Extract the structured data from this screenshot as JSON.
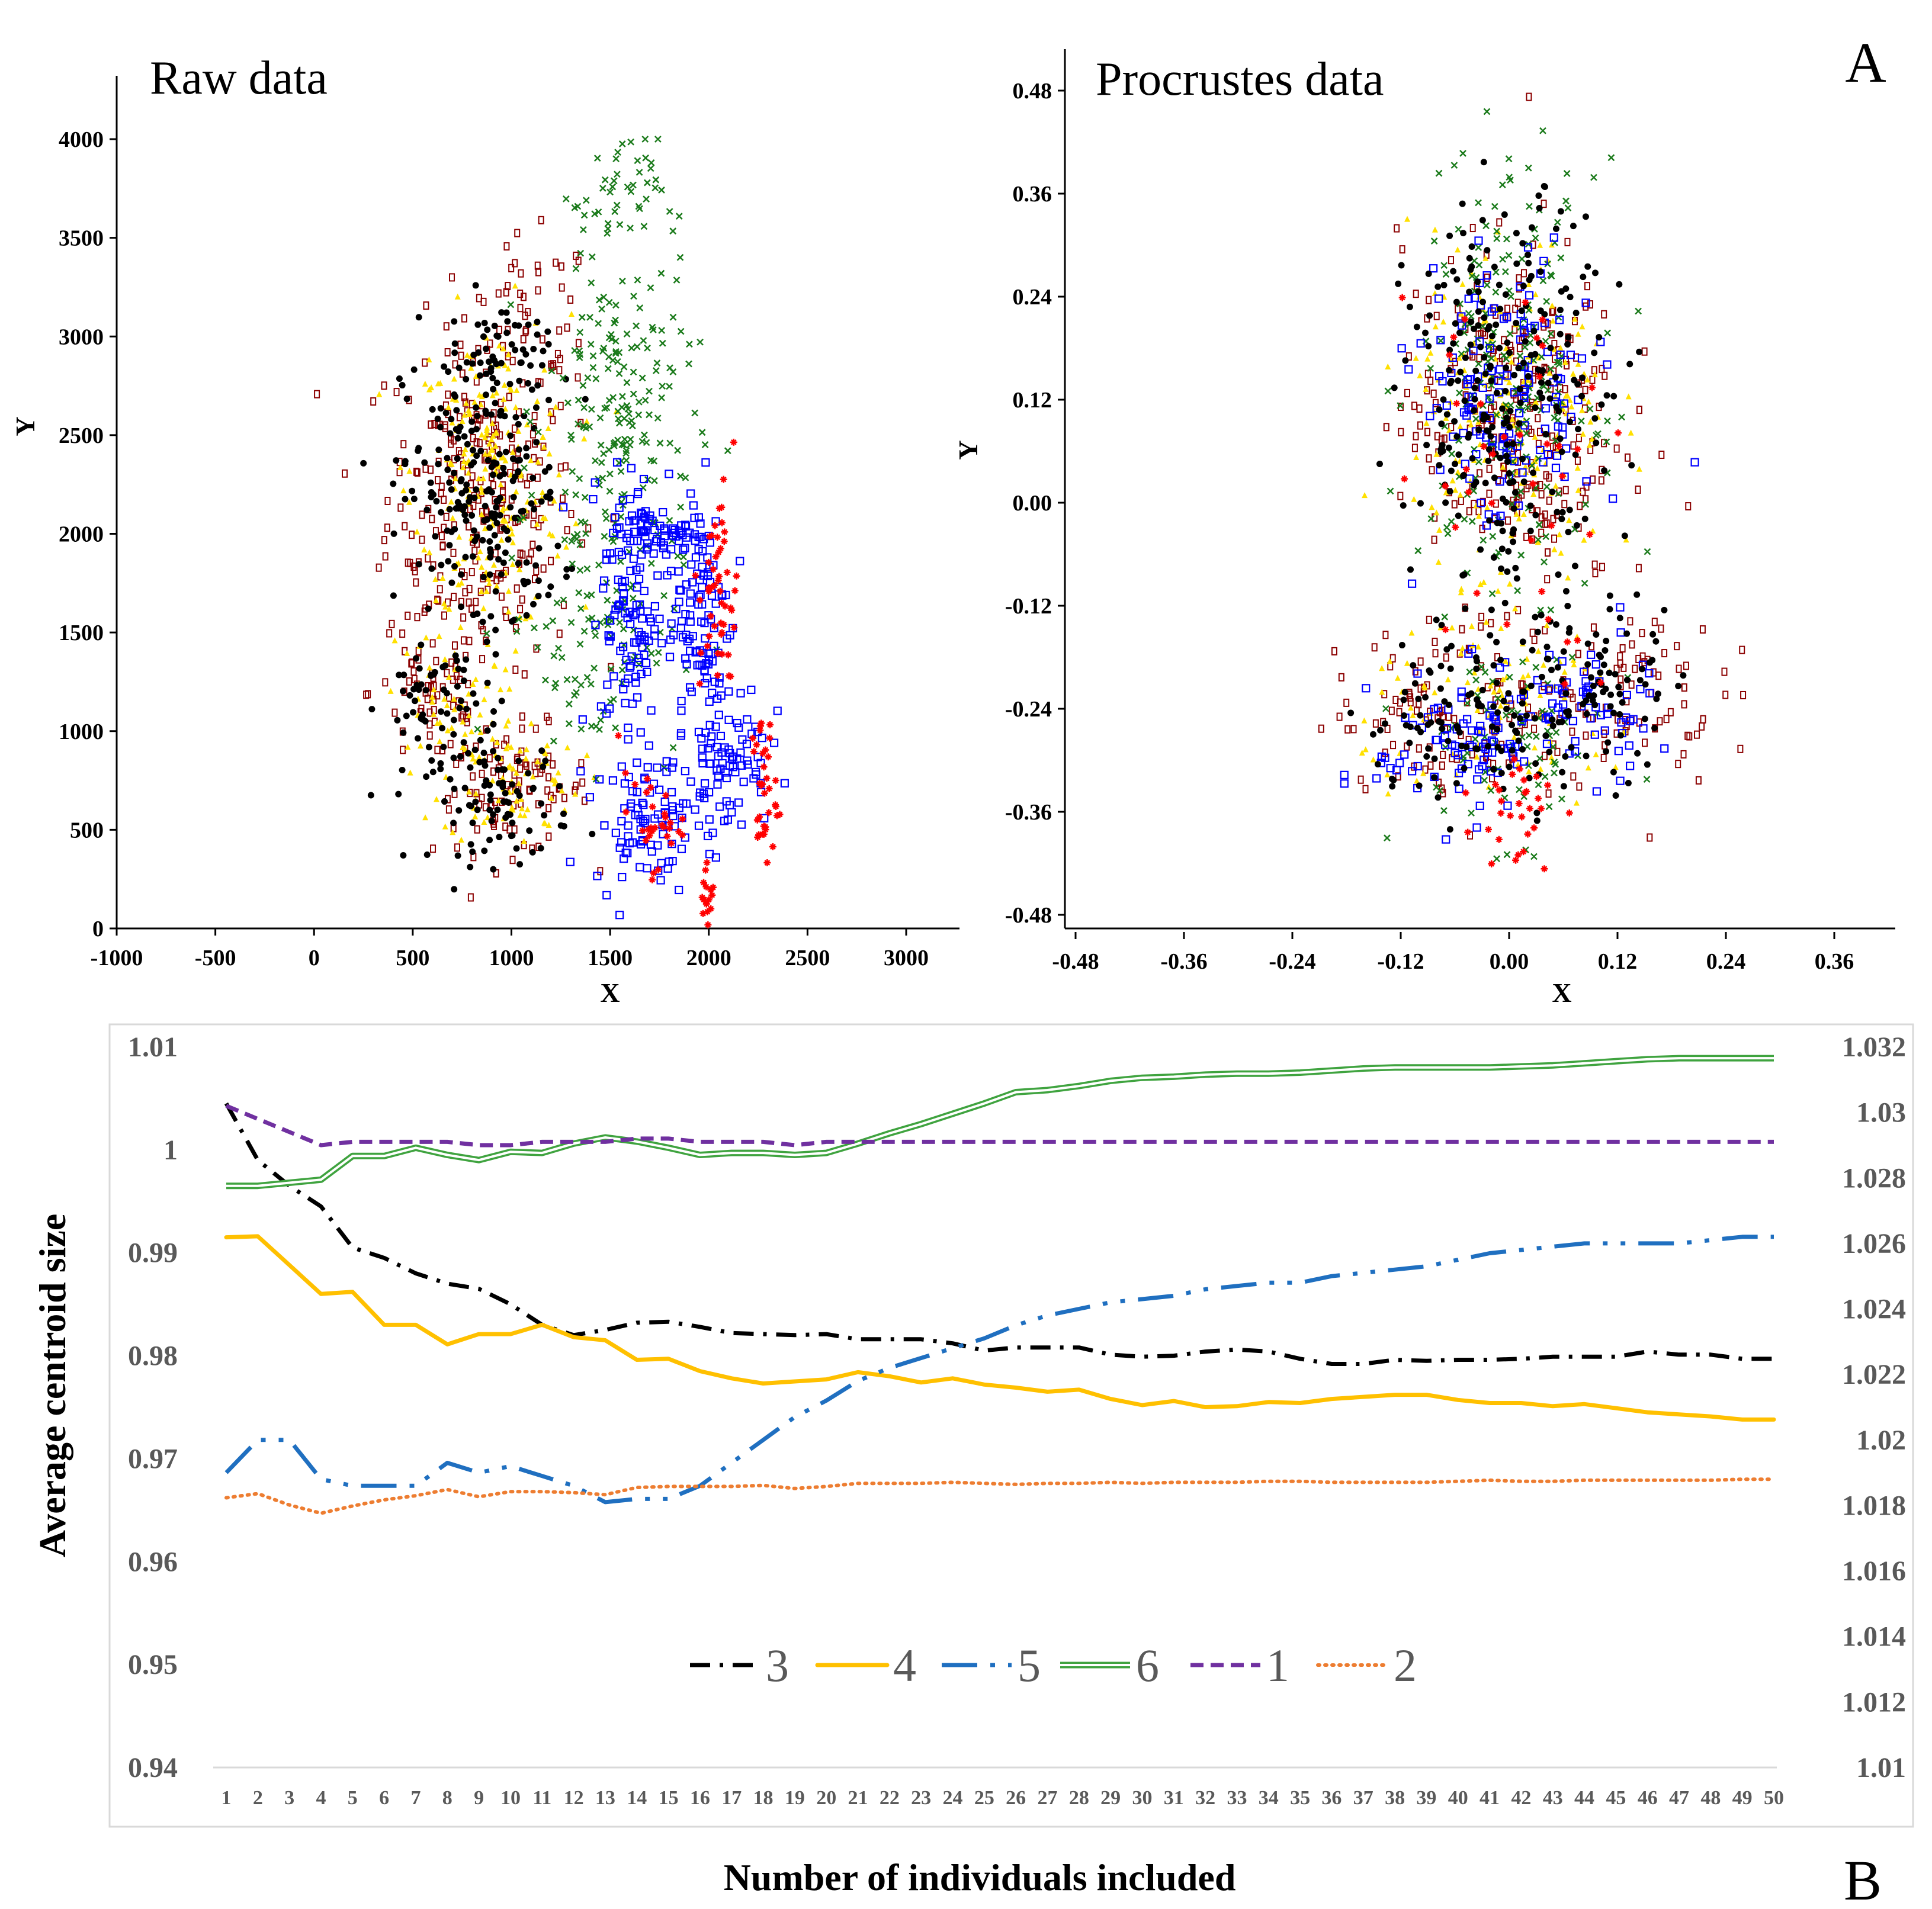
{
  "panel_labels": {
    "a": "A",
    "b": "B"
  },
  "colors": {
    "black": "#000000",
    "yellow": "#ffe000",
    "darkred": "#8b0000",
    "green": "#1a7a1a",
    "blue": "#0000ff",
    "red": "#ff0000",
    "s3": "#000000",
    "s4": "#ffc000",
    "s5": "#1f6fc0",
    "s6": "#3fa33f",
    "s1": "#7030a0",
    "s2": "#ed7d31",
    "gray_text": "#595959",
    "frame": "#d9d9d9"
  },
  "chart_data": [
    {
      "type": "scatter",
      "title": "Raw data",
      "xlabel": "X",
      "ylabel": "Y",
      "xlim": [
        -1000,
        3000
      ],
      "ylim": [
        0,
        4000
      ],
      "x_ticks": [
        "-1000",
        "-500",
        "0",
        "500",
        "1000",
        "1500",
        "2000",
        "2500",
        "3000"
      ],
      "y_ticks": [
        "0",
        "500",
        "1000",
        "1500",
        "2000",
        "2500",
        "3000",
        "3500",
        "4000"
      ],
      "point_series": [
        {
          "color": "darkred",
          "marker": "rect",
          "clusters": [
            {
              "cx": 850,
              "cy": 2200,
              "sx": 300,
              "sy": 550,
              "n": 260
            },
            {
              "cx": 1000,
              "cy": 700,
              "sx": 250,
              "sy": 200,
              "n": 90
            },
            {
              "cx": 600,
              "cy": 1200,
              "sx": 200,
              "sy": 250,
              "n": 60
            },
            {
              "cx": 1100,
              "cy": 3100,
              "sx": 200,
              "sy": 250,
              "n": 40
            }
          ]
        },
        {
          "color": "yellow",
          "marker": "tri",
          "clusters": [
            {
              "cx": 900,
              "cy": 2300,
              "sx": 250,
              "sy": 500,
              "n": 220
            },
            {
              "cx": 1000,
              "cy": 750,
              "sx": 220,
              "sy": 200,
              "n": 80
            },
            {
              "cx": 650,
              "cy": 1150,
              "sx": 180,
              "sy": 200,
              "n": 50
            }
          ]
        },
        {
          "color": "black",
          "marker": "dot",
          "clusters": [
            {
              "cx": 850,
              "cy": 2200,
              "sx": 250,
              "sy": 500,
              "n": 240
            },
            {
              "cx": 950,
              "cy": 650,
              "sx": 220,
              "sy": 200,
              "n": 90
            },
            {
              "cx": 580,
              "cy": 1150,
              "sx": 150,
              "sy": 200,
              "n": 50
            },
            {
              "cx": 950,
              "cy": 2900,
              "sx": 150,
              "sy": 200,
              "n": 40
            }
          ]
        },
        {
          "color": "green",
          "marker": "x",
          "clusters": [
            {
              "cx": 1550,
              "cy": 2600,
              "sx": 230,
              "sy": 550,
              "n": 200
            },
            {
              "cx": 1400,
              "cy": 1500,
              "sx": 280,
              "sy": 400,
              "n": 100
            },
            {
              "cx": 1550,
              "cy": 3700,
              "sx": 120,
              "sy": 200,
              "n": 40
            }
          ]
        },
        {
          "color": "blue",
          "marker": "square",
          "clusters": [
            {
              "cx": 1600,
              "cy": 1600,
              "sx": 90,
              "sy": 450,
              "n": 110
            },
            {
              "cx": 1950,
              "cy": 1600,
              "sx": 100,
              "sy": 450,
              "n": 110
            },
            {
              "cx": 1750,
              "cy": 2000,
              "sx": 180,
              "sy": 80,
              "n": 60
            },
            {
              "cx": 2100,
              "cy": 900,
              "sx": 130,
              "sy": 250,
              "n": 80
            },
            {
              "cx": 1700,
              "cy": 550,
              "sx": 180,
              "sy": 200,
              "n": 90
            }
          ]
        },
        {
          "color": "red",
          "marker": "star",
          "clusters": [
            {
              "cx": 2050,
              "cy": 1700,
              "sx": 60,
              "sy": 350,
              "n": 50
            },
            {
              "cx": 2280,
              "cy": 700,
              "sx": 40,
              "sy": 250,
              "n": 35
            },
            {
              "cx": 1700,
              "cy": 550,
              "sx": 100,
              "sy": 150,
              "n": 30
            },
            {
              "cx": 2000,
              "cy": 150,
              "sx": 20,
              "sy": 100,
              "n": 15
            }
          ]
        }
      ]
    },
    {
      "type": "scatter",
      "title": "Procrustes data",
      "xlabel": "X",
      "ylabel": "Y",
      "xlim": [
        -0.52,
        0.44
      ],
      "ylim": [
        -0.5,
        0.52
      ],
      "x_ticks": [
        "-0.48",
        "-0.36",
        "-0.24",
        "-0.12",
        "0.00",
        "0.12",
        "0.24",
        "0.36"
      ],
      "y_ticks": [
        "-0.48",
        "-0.36",
        "-0.24",
        "-0.12",
        "0.00",
        "0.12",
        "0.24",
        "0.36",
        "0.48"
      ],
      "point_series": [
        {
          "color": "darkred",
          "marker": "rect",
          "clusters": [
            {
              "cx": 0.0,
              "cy": 0.1,
              "sx": 0.075,
              "sy": 0.13,
              "n": 260
            },
            {
              "cx": -0.05,
              "cy": -0.24,
              "sx": 0.09,
              "sy": 0.06,
              "n": 110
            },
            {
              "cx": 0.12,
              "cy": -0.22,
              "sx": 0.07,
              "sy": 0.07,
              "n": 80
            }
          ]
        },
        {
          "color": "yellow",
          "marker": "tri",
          "clusters": [
            {
              "cx": 0.0,
              "cy": 0.1,
              "sx": 0.07,
              "sy": 0.13,
              "n": 200
            },
            {
              "cx": 0.0,
              "cy": -0.24,
              "sx": 0.1,
              "sy": 0.07,
              "n": 100
            }
          ]
        },
        {
          "color": "green",
          "marker": "x",
          "clusters": [
            {
              "cx": 0.0,
              "cy": 0.15,
              "sx": 0.06,
              "sy": 0.15,
              "n": 220
            },
            {
              "cx": 0.0,
              "cy": -0.28,
              "sx": 0.07,
              "sy": 0.07,
              "n": 80
            }
          ]
        },
        {
          "color": "blue",
          "marker": "square",
          "clusters": [
            {
              "cx": 0.0,
              "cy": 0.12,
              "sx": 0.06,
              "sy": 0.1,
              "n": 140
            },
            {
              "cx": -0.05,
              "cy": -0.28,
              "sx": 0.06,
              "sy": 0.05,
              "n": 90
            },
            {
              "cx": 0.08,
              "cy": -0.24,
              "sx": 0.05,
              "sy": 0.05,
              "n": 60
            }
          ]
        },
        {
          "color": "black",
          "marker": "dot",
          "clusters": [
            {
              "cx": 0.0,
              "cy": 0.12,
              "sx": 0.07,
              "sy": 0.14,
              "n": 260
            },
            {
              "cx": -0.02,
              "cy": -0.25,
              "sx": 0.09,
              "sy": 0.06,
              "n": 130
            },
            {
              "cx": 0.11,
              "cy": -0.2,
              "sx": 0.05,
              "sy": 0.06,
              "n": 60
            }
          ]
        },
        {
          "color": "red",
          "marker": "star",
          "clusters": [
            {
              "cx": 0.01,
              "cy": -0.35,
              "sx": 0.03,
              "sy": 0.05,
              "n": 30
            },
            {
              "cx": 0.0,
              "cy": 0.05,
              "sx": 0.08,
              "sy": 0.15,
              "n": 40
            }
          ]
        }
      ]
    },
    {
      "type": "line",
      "xlabel": "Number of individuals  included",
      "ylabel": "Average centroid size",
      "x": [
        1,
        2,
        3,
        4,
        5,
        6,
        7,
        8,
        9,
        10,
        11,
        12,
        13,
        14,
        15,
        16,
        17,
        18,
        19,
        20,
        21,
        22,
        23,
        24,
        25,
        26,
        27,
        28,
        29,
        30,
        31,
        32,
        33,
        34,
        35,
        36,
        37,
        38,
        39,
        40,
        41,
        42,
        43,
        44,
        45,
        46,
        47,
        48,
        49,
        50
      ],
      "ylim": [
        0.94,
        1.01
      ],
      "y_ticks": [
        "0.94",
        "0.95",
        "0.96",
        "0.97",
        "0.98",
        "0.99",
        "1",
        "1.01"
      ],
      "y2lim": [
        1.01,
        1.032
      ],
      "y2_ticks": [
        "1.01",
        "1.012",
        "1.014",
        "1.016",
        "1.018",
        "1.02",
        "1.022",
        "1.024",
        "1.026",
        "1.028",
        "1.03",
        "1.032"
      ],
      "legend_position": "bottom-center",
      "series": [
        {
          "name": "3",
          "axis": "left",
          "color": "s3",
          "style": "dashdot",
          "values": [
            1.0045,
            0.999,
            0.9965,
            0.9945,
            0.9905,
            0.9895,
            0.988,
            0.987,
            0.9865,
            0.985,
            0.983,
            0.982,
            0.9825,
            0.9832,
            0.9833,
            0.9828,
            0.9822,
            0.9821,
            0.982,
            0.9821,
            0.9816,
            0.9816,
            0.9816,
            0.9812,
            0.9805,
            0.9808,
            0.9808,
            0.9808,
            0.9801,
            0.9799,
            0.98,
            0.9804,
            0.9806,
            0.9804,
            0.9797,
            0.9792,
            0.9792,
            0.9796,
            0.9795,
            0.9796,
            0.9796,
            0.9797,
            0.9799,
            0.9799,
            0.9799,
            0.9804,
            0.9801,
            0.9801,
            0.9797,
            0.9797
          ]
        },
        {
          "name": "4",
          "axis": "left",
          "color": "s4",
          "style": "solid",
          "values": [
            0.9915,
            0.9916,
            0.9888,
            0.986,
            0.9862,
            0.983,
            0.983,
            0.9811,
            0.9821,
            0.9821,
            0.983,
            0.9818,
            0.9815,
            0.9796,
            0.9797,
            0.9785,
            0.9778,
            0.9773,
            0.9775,
            0.9777,
            0.9784,
            0.978,
            0.9774,
            0.9778,
            0.9772,
            0.9769,
            0.9765,
            0.9767,
            0.9758,
            0.9752,
            0.9756,
            0.975,
            0.9751,
            0.9755,
            0.9754,
            0.9758,
            0.976,
            0.9762,
            0.9762,
            0.9757,
            0.9754,
            0.9754,
            0.9751,
            0.9753,
            0.9749,
            0.9745,
            0.9743,
            0.9741,
            0.9738,
            0.9738
          ]
        },
        {
          "name": "5",
          "axis": "right",
          "color": "s5",
          "style": "longdash",
          "values": [
            1.019,
            1.02,
            1.02,
            1.0188,
            1.0186,
            1.0186,
            1.0186,
            1.0193,
            1.019,
            1.0192,
            1.0189,
            1.0186,
            1.0181,
            1.0182,
            1.0182,
            1.0186,
            1.0193,
            1.02,
            1.0207,
            1.0212,
            1.0218,
            1.0222,
            1.0225,
            1.0228,
            1.0231,
            1.0235,
            1.0238,
            1.024,
            1.0242,
            1.0243,
            1.0244,
            1.0246,
            1.0247,
            1.0248,
            1.0248,
            1.025,
            1.0251,
            1.0252,
            1.0253,
            1.0255,
            1.0257,
            1.0258,
            1.0259,
            1.026,
            1.026,
            1.026,
            1.026,
            1.0261,
            1.0262,
            1.0262
          ]
        },
        {
          "name": "6",
          "axis": "left",
          "color": "s6",
          "style": "double",
          "values": [
            0.9965,
            0.9965,
            0.9968,
            0.9971,
            0.9994,
            0.9994,
            1.0002,
            0.9995,
            0.999,
            0.9998,
            0.9997,
            1.0006,
            1.0012,
            1.0008,
            1.0002,
            0.9995,
            0.9997,
            0.9997,
            0.9995,
            0.9997,
            1.0006,
            1.0016,
            1.0025,
            1.0035,
            1.0045,
            1.0056,
            1.0058,
            1.0062,
            1.0067,
            1.007,
            1.0071,
            1.0073,
            1.0074,
            1.0074,
            1.0075,
            1.0077,
            1.0079,
            1.008,
            1.008,
            1.008,
            1.008,
            1.0081,
            1.0082,
            1.0084,
            1.0086,
            1.0088,
            1.0089,
            1.0089,
            1.0089,
            1.0089
          ]
        },
        {
          "name": "1",
          "axis": "right",
          "color": "s1",
          "style": "dashed",
          "values": [
            1.0302,
            1.0298,
            1.0294,
            1.029,
            1.0291,
            1.0291,
            1.0291,
            1.0291,
            1.029,
            1.029,
            1.0291,
            1.0291,
            1.0291,
            1.0292,
            1.0292,
            1.0291,
            1.0291,
            1.0291,
            1.029,
            1.0291,
            1.0291,
            1.0291,
            1.0291,
            1.0291,
            1.0291,
            1.0291,
            1.0291,
            1.0291,
            1.0291,
            1.0291,
            1.0291,
            1.0291,
            1.0291,
            1.0291,
            1.0291,
            1.0291,
            1.0291,
            1.0291,
            1.0291,
            1.0291,
            1.0291,
            1.0291,
            1.0291,
            1.0291,
            1.0291,
            1.0291,
            1.0291,
            1.0291,
            1.0291,
            1.0291
          ]
        },
        {
          "name": "2",
          "axis": "left",
          "color": "s2",
          "style": "dotted",
          "values": [
            0.9662,
            0.9666,
            0.9655,
            0.9647,
            0.9654,
            0.966,
            0.9664,
            0.967,
            0.9663,
            0.9668,
            0.9668,
            0.9667,
            0.9665,
            0.9672,
            0.9673,
            0.9673,
            0.9673,
            0.9674,
            0.9671,
            0.9673,
            0.9676,
            0.9676,
            0.9676,
            0.9677,
            0.9676,
            0.9675,
            0.9676,
            0.9676,
            0.9677,
            0.9676,
            0.9677,
            0.9677,
            0.9677,
            0.9678,
            0.9678,
            0.9677,
            0.9677,
            0.9677,
            0.9677,
            0.9678,
            0.9679,
            0.9678,
            0.9678,
            0.9679,
            0.9679,
            0.9679,
            0.9679,
            0.9679,
            0.968,
            0.968
          ]
        }
      ]
    }
  ]
}
